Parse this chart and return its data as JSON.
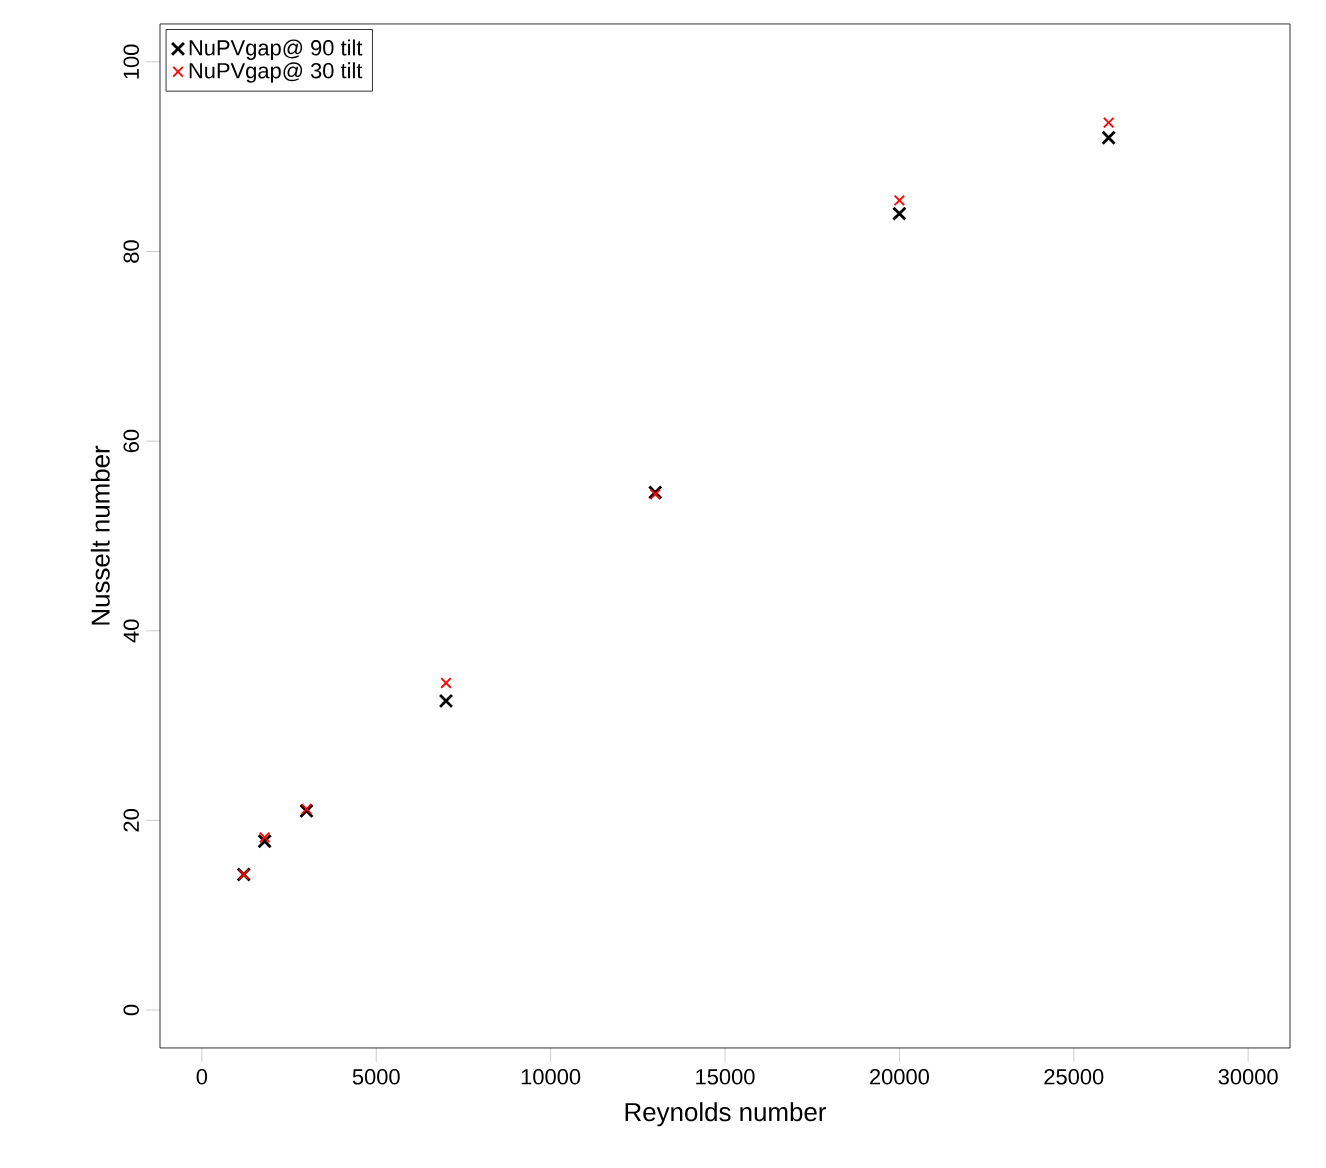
{
  "chart_data": {
    "type": "scatter",
    "xlabel": "Reynolds number",
    "ylabel": "Nusselt number",
    "x": [
      1200,
      1800,
      3000,
      7000,
      13000,
      20000,
      26000
    ],
    "series": [
      {
        "name": "NuPVgap@ 90 tilt",
        "color": "#000000",
        "values": [
          14.3,
          17.8,
          21.0,
          32.6,
          54.6,
          84.0,
          92.0
        ]
      },
      {
        "name": "NuPVgap@ 30 tilt",
        "color": "#ff0000",
        "values": [
          14.3,
          18.2,
          21.2,
          34.5,
          54.4,
          85.4,
          93.6
        ]
      }
    ],
    "xlim": [
      -1200,
      31200
    ],
    "ylim": [
      -4,
      104
    ],
    "xticks": [
      0,
      5000,
      10000,
      15000,
      20000,
      25000,
      30000
    ],
    "yticks": [
      0,
      20,
      40,
      60,
      80,
      100
    ],
    "marker": "cross",
    "legend": "top left",
    "grid": false
  }
}
